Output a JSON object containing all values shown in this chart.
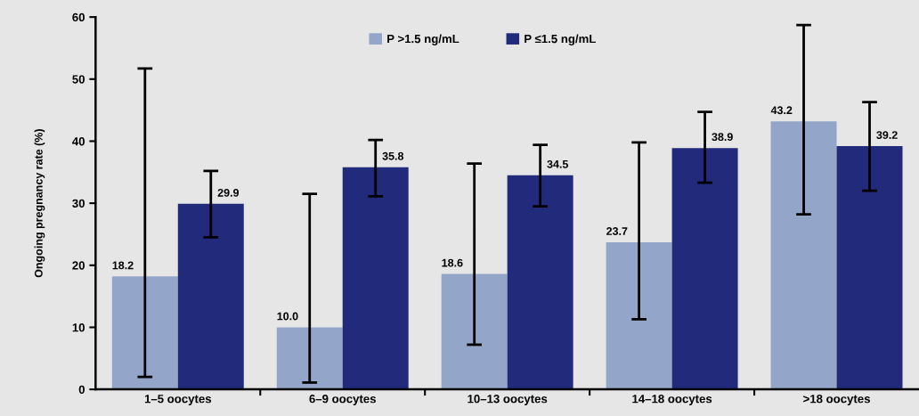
{
  "chart_data": {
    "type": "bar",
    "ylabel": "Ongoing pregnancy rate (%)",
    "categories": [
      "1–5 oocytes",
      "6–9 oocytes",
      "10–13 oocytes",
      "14–18 oocytes",
      ">18 oocytes"
    ],
    "series": [
      {
        "name": "P >1.5 ng/mL",
        "color": "#93a5c8",
        "values": [
          18.2,
          10.0,
          18.6,
          23.7,
          43.2
        ],
        "value_labels": [
          "18.2",
          "10.0",
          "18.6",
          "23.7",
          "43.2"
        ],
        "errors": [
          [
            2.0,
            51.7
          ],
          [
            1.1,
            31.5
          ],
          [
            7.2,
            36.4
          ],
          [
            11.3,
            39.8
          ],
          [
            28.2,
            58.7
          ]
        ]
      },
      {
        "name": "P ≤1.5 ng/mL",
        "color": "#222a7c",
        "values": [
          29.9,
          35.8,
          34.5,
          38.9,
          39.2
        ],
        "value_labels": [
          "29.9",
          "35.8",
          "34.5",
          "38.9",
          "39.2"
        ],
        "errors": [
          [
            24.5,
            35.2
          ],
          [
            31.1,
            40.2
          ],
          [
            29.5,
            39.4
          ],
          [
            33.3,
            44.7
          ],
          [
            32.0,
            46.3
          ]
        ]
      }
    ],
    "ylim": [
      0,
      60
    ],
    "yticks": [
      0,
      10,
      20,
      30,
      40,
      50,
      60
    ],
    "grid": false,
    "legend": "top"
  }
}
